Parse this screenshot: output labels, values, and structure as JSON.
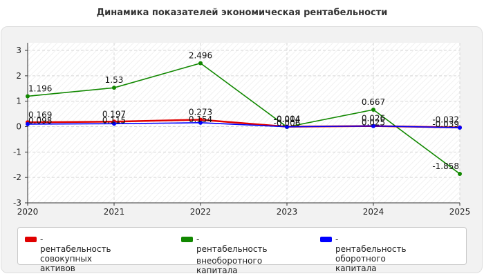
{
  "chart_data": {
    "type": "line",
    "title": "Динамика показателей экономическая рентабельности",
    "xlabel": "",
    "ylabel": "",
    "x": [
      "2020",
      "2021",
      "2022",
      "2023",
      "2024",
      "2025"
    ],
    "ylim": [
      -3,
      3.3
    ],
    "yticks": [
      "3",
      "2",
      "1",
      "0",
      "-1",
      "-2",
      "-3"
    ],
    "grid": true,
    "legend_position": "bottom",
    "series": [
      {
        "name": "рентабельность совокупных активов",
        "color": "#e00000",
        "values": [
          0.169,
          0.197,
          0.273,
          -0.004,
          0.026,
          -0.032
        ],
        "labels": [
          "0.169",
          "0.197",
          "0.273",
          "-0.004",
          "0.026",
          "-0.032"
        ]
      },
      {
        "name": "рентабельность внеоборотного капитала",
        "color": "#118800",
        "values": [
          1.196,
          1.53,
          2.496,
          -0.014,
          0.667,
          -1.858
        ],
        "labels": [
          "1.196",
          "1.53",
          "2.496",
          "-0.014",
          "0.667",
          "-1.858"
        ]
      },
      {
        "name": "рентабельность оборотного капитала",
        "color": "#0000ff",
        "values": [
          0.098,
          0.115,
          0.154,
          -0.006,
          0.025,
          -0.039
        ],
        "labels": [
          "0.098",
          "0.115",
          "0.154",
          "-0.006",
          "0.025",
          "-0.039"
        ]
      }
    ]
  },
  "legend": {
    "item1_line1": "- рентабельность совокупных",
    "item1_line2": "активов",
    "item2_line1": "- рентабельность",
    "item2_line2": "внеоборотного капитала",
    "item3_line1": "- рентабельность оборотного",
    "item3_line2": "капитала"
  }
}
